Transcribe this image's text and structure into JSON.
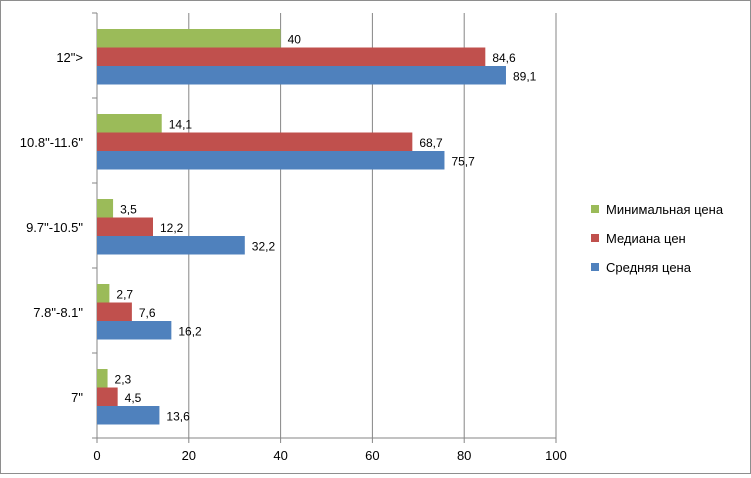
{
  "chart_data": {
    "type": "bar",
    "orientation": "horizontal",
    "categories": [
      "12\">",
      "10.8\"-11.6\"",
      "9.7\"-10.5\"",
      "7.8\"-8.1\"",
      "7\""
    ],
    "series": [
      {
        "name": "Минимальная цена",
        "color": "#9bbb59",
        "values": [
          40,
          14.1,
          3.5,
          2.7,
          2.3
        ],
        "labels": [
          "40",
          "14,1",
          "3,5",
          "2,7",
          "2,3"
        ]
      },
      {
        "name": "Медиана цен",
        "color": "#c0504d",
        "values": [
          84.6,
          68.7,
          12.2,
          7.6,
          4.5
        ],
        "labels": [
          "84,6",
          "68,7",
          "12,2",
          "7,6",
          "4,5"
        ]
      },
      {
        "name": "Средняя цена",
        "color": "#4f81bd",
        "values": [
          89.1,
          75.7,
          32.2,
          16.2,
          13.6
        ],
        "labels": [
          "89,1",
          "75,7",
          "32,2",
          "16,2",
          "13,6"
        ]
      }
    ],
    "xlim": [
      0,
      100
    ],
    "xticks": [
      "0",
      "20",
      "40",
      "60",
      "80",
      "100"
    ],
    "grid": true,
    "legend_position": "right"
  },
  "legend": {
    "items": [
      {
        "label": "Минимальная цена",
        "color": "#9bbb59"
      },
      {
        "label": "Медиана цен",
        "color": "#c0504d"
      },
      {
        "label": "Средняя цена",
        "color": "#4f81bd"
      }
    ]
  }
}
